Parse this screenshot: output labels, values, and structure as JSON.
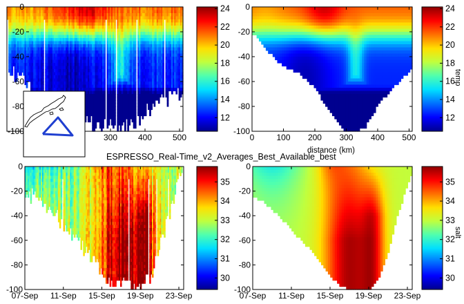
{
  "figure": {
    "suptitle": "ESPRESSO_Real-Time_v2_Averages_Best_Available_best",
    "colormap": [
      "#00008f",
      "#0000ff",
      "#006fff",
      "#00dfff",
      "#4fffaf",
      "#bfff3f",
      "#ffdf00",
      "#ff6f00",
      "#ff0000",
      "#8f0000"
    ]
  },
  "chart_data": [
    {
      "type": "heatmap",
      "panel": "top-left",
      "variable": "temp",
      "xaxis": "distance",
      "xlabel": "",
      "xlim": [
        0,
        510
      ],
      "xticks": [
        "0",
        "100",
        "200",
        "300",
        "400",
        "500"
      ],
      "ylim": [
        -100,
        0
      ],
      "yticks": [
        "0",
        "-20",
        "-40",
        "-60",
        "-80",
        "-100"
      ],
      "clim": [
        10.5,
        24.2
      ],
      "colorbar_ticks": [
        "24",
        "22",
        "20",
        "18",
        "16",
        "14",
        "12"
      ],
      "colorbar_label": "",
      "depth_profile": [
        [
          0,
          -58
        ],
        [
          20,
          -55
        ],
        [
          40,
          -60
        ],
        [
          60,
          -65
        ],
        [
          80,
          -75
        ],
        [
          100,
          -80
        ],
        [
          150,
          -85
        ],
        [
          200,
          -92
        ],
        [
          250,
          -97
        ],
        [
          300,
          -100
        ],
        [
          330,
          -100
        ],
        [
          350,
          -100
        ],
        [
          380,
          -95
        ],
        [
          400,
          -85
        ],
        [
          450,
          -78
        ],
        [
          500,
          -72
        ],
        [
          510,
          -70
        ]
      ],
      "features": [
        "warm surface layer ~0-20 m, up to 24 deg C near 220-250 km",
        "cold water 11-14 deg C below 40 m"
      ],
      "inset": "station track map (triangle of stations south of coast)"
    },
    {
      "type": "heatmap",
      "panel": "top-right",
      "variable": "temp",
      "xaxis": "distance",
      "xlabel": "distance (km)",
      "xlim": [
        0,
        510
      ],
      "xticks": [
        "0",
        "100",
        "200",
        "300",
        "400",
        "500"
      ],
      "ylim": [
        -100,
        0
      ],
      "yticks": [
        "0",
        "-20",
        "-40",
        "-60",
        "-80",
        "-100"
      ],
      "clim": [
        10.5,
        24.2
      ],
      "colorbar_ticks": [
        "24",
        "22",
        "20",
        "18",
        "16",
        "14",
        "12"
      ],
      "colorbar_label": "temp",
      "depth_profile": [
        [
          0,
          -22
        ],
        [
          20,
          -25
        ],
        [
          40,
          -33
        ],
        [
          60,
          -38
        ],
        [
          80,
          -43
        ],
        [
          100,
          -48
        ],
        [
          150,
          -53
        ],
        [
          200,
          -65
        ],
        [
          250,
          -85
        ],
        [
          280,
          -95
        ],
        [
          300,
          -100
        ],
        [
          330,
          -100
        ],
        [
          360,
          -97
        ],
        [
          400,
          -80
        ],
        [
          430,
          -70
        ],
        [
          470,
          -60
        ],
        [
          500,
          -52
        ],
        [
          510,
          -50
        ]
      ],
      "features": [
        "smoothed temperature section",
        "cold core 10-12 deg C at 40-80 m, 100-220 km"
      ]
    },
    {
      "type": "heatmap",
      "panel": "bottom-left",
      "variable": "salt",
      "xaxis": "time",
      "xlabel": "",
      "xlim": [
        "07-Sep",
        "23-Sep"
      ],
      "xticks": [
        "07-Sep",
        "11-Sep",
        "15-Sep",
        "19-Sep",
        "23-Sep"
      ],
      "ylim": [
        -100,
        0
      ],
      "yticks": [
        "0",
        "-20",
        "-40",
        "-60",
        "-80",
        "-100"
      ],
      "clim": [
        29.4,
        35.8
      ],
      "colorbar_ticks": [
        "35",
        "34",
        "33",
        "32",
        "31",
        "30"
      ],
      "colorbar_label": "",
      "features": [
        "high salinity (35-35.8) core near 13-19 Sep",
        "fresher (31-33) near surface 07-11 Sep"
      ]
    },
    {
      "type": "heatmap",
      "panel": "bottom-right",
      "variable": "salt",
      "xaxis": "time",
      "xlabel": "",
      "xlim": [
        "07-Sep",
        "23-Sep"
      ],
      "xticks": [
        "07-Sep",
        "11-Sep",
        "15-Sep",
        "19-Sep",
        "23-Sep"
      ],
      "ylim": [
        -100,
        0
      ],
      "yticks": [
        "0",
        "-20",
        "-40",
        "-60",
        "-80",
        "-100"
      ],
      "clim": [
        29.4,
        35.8
      ],
      "colorbar_ticks": [
        "35",
        "34",
        "33",
        "32",
        "31",
        "30"
      ],
      "colorbar_label": "salt",
      "features": [
        "smoothed salinity section",
        "salinity maximum ~35.5 at 15-19 Sep down to -100 m"
      ]
    }
  ]
}
